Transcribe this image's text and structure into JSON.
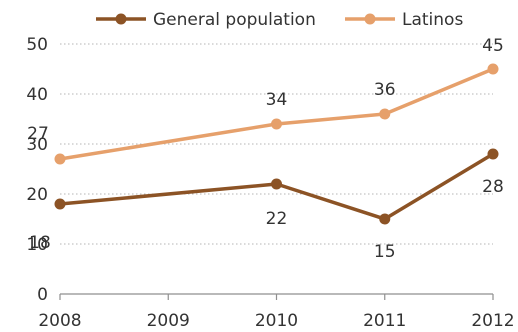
{
  "chart_data": {
    "type": "line",
    "x": [
      "2008",
      "2009",
      "2010",
      "2011",
      "2012"
    ],
    "series": [
      {
        "name": "General population",
        "color": "#8c5325",
        "points": [
          {
            "x": "2008",
            "y": 18
          },
          {
            "x": "2010",
            "y": 22
          },
          {
            "x": "2011",
            "y": 15
          },
          {
            "x": "2012",
            "y": 28
          }
        ],
        "labels": [
          "18",
          "22",
          "15",
          "28"
        ]
      },
      {
        "name": "Latinos",
        "color": "#e6a06b",
        "points": [
          {
            "x": "2008",
            "y": 27
          },
          {
            "x": "2010",
            "y": 34
          },
          {
            "x": "2011",
            "y": 36
          },
          {
            "x": "2012",
            "y": 45
          }
        ],
        "labels": [
          "27",
          "34",
          "36",
          "45"
        ]
      }
    ],
    "yticks": [
      "0",
      "10",
      "20",
      "30",
      "40",
      "50"
    ],
    "ylim": [
      0,
      50
    ],
    "grid": "dotted horizontal",
    "legend_position": "top"
  }
}
